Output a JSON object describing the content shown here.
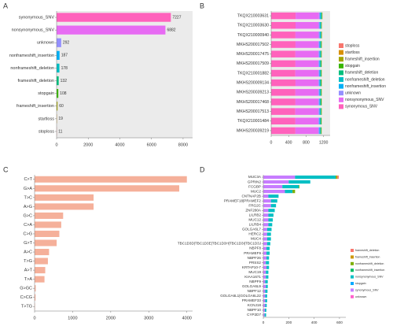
{
  "chart_data": [
    {
      "type": "bar",
      "orientation": "horizontal",
      "label": "A",
      "background": "#ebebeb",
      "categories": [
        "synonymous_SNV",
        "nonsynonymous_SNV",
        "unknown",
        "nonframeshift_insertion",
        "nonframeshift_deletion",
        "frameshift_deletion",
        "stopgain",
        "frameshift_insertion",
        "startloss",
        "stoploss"
      ],
      "values": [
        7227,
        6882,
        292,
        187,
        178,
        132,
        108,
        60,
        19,
        11
      ],
      "colors": [
        "#ff62bc",
        "#e76bf3",
        "#9590ff",
        "#00b0f6",
        "#00bfc4",
        "#00bf7d",
        "#39b600",
        "#a3a500",
        "#d89000",
        "#f8766d"
      ],
      "xlim": [
        0,
        8600
      ],
      "xticks": [
        0,
        2000,
        4000,
        6000,
        8000
      ]
    },
    {
      "type": "stacked_bar",
      "orientation": "horizontal",
      "label": "B",
      "background": "#ebebeb",
      "categories": [
        "TKQX210003631",
        "TKQX210003630",
        "TKQX210000940",
        "MKHS200017502",
        "MKHS200017475",
        "MKHS200017509",
        "TKQX210001882",
        "MKHS200009134",
        "MKHS200039213",
        "MKHS200017468",
        "MKHS200017513",
        "TKQX210001484",
        "MKHS200039219"
      ],
      "series": [
        {
          "name": "stoploss",
          "color": "#f8766d",
          "values": [
            1,
            1,
            1,
            1,
            1,
            1,
            1,
            1,
            1,
            1,
            0,
            1,
            0
          ]
        },
        {
          "name": "startloss",
          "color": "#d89000",
          "values": [
            2,
            1,
            2,
            1,
            2,
            1,
            1,
            2,
            1,
            2,
            2,
            1,
            1
          ]
        },
        {
          "name": "frameshift_insertion",
          "color": "#a3a500",
          "values": [
            5,
            4,
            5,
            5,
            4,
            5,
            4,
            5,
            5,
            4,
            5,
            4,
            5
          ]
        },
        {
          "name": "stopgain",
          "color": "#39b600",
          "values": [
            9,
            8,
            8,
            9,
            8,
            8,
            9,
            8,
            8,
            9,
            8,
            8,
            8
          ]
        },
        {
          "name": "frameshift_deletion",
          "color": "#00bf7d",
          "values": [
            11,
            10,
            10,
            11,
            10,
            10,
            10,
            10,
            10,
            10,
            10,
            10,
            10
          ]
        },
        {
          "name": "nonframeshift_deletion",
          "color": "#00bfc4",
          "values": [
            14,
            14,
            13,
            14,
            14,
            13,
            14,
            14,
            14,
            13,
            14,
            14,
            13
          ]
        },
        {
          "name": "nonframeshift_insertion",
          "color": "#00b0f6",
          "values": [
            15,
            14,
            15,
            14,
            14,
            15,
            14,
            14,
            15,
            14,
            14,
            15,
            14
          ]
        },
        {
          "name": "unknown",
          "color": "#9590ff",
          "values": [
            23,
            22,
            23,
            22,
            23,
            22,
            22,
            23,
            22,
            22,
            23,
            22,
            23
          ]
        },
        {
          "name": "nonsynonymous_SNV",
          "color": "#e76bf3",
          "values": [
            535,
            530,
            532,
            528,
            530,
            527,
            531,
            526,
            529,
            528,
            532,
            527,
            527
          ]
        },
        {
          "name": "synonymous_SNV",
          "color": "#ff62bc",
          "values": [
            560,
            558,
            556,
            557,
            555,
            556,
            554,
            557,
            555,
            556,
            553,
            555,
            555
          ]
        }
      ],
      "xlim": [
        0,
        1350
      ],
      "xticks": [
        0,
        400,
        800,
        1200
      ]
    },
    {
      "type": "bar",
      "orientation": "horizontal",
      "label": "C",
      "color": "#f5b09a",
      "categories": [
        "C>T",
        "G>A",
        "T>C",
        "A>G",
        "G>C",
        "C>A",
        "C>G",
        "G>T",
        "A>C",
        "T>G",
        "A>T",
        "T>A",
        "G>GC",
        "C>CG",
        "T>TG"
      ],
      "values": [
        4000,
        3800,
        1550,
        1550,
        750,
        700,
        650,
        580,
        380,
        350,
        280,
        260,
        30,
        25,
        10
      ],
      "xlim": [
        0,
        4150
      ],
      "xticks": [
        0,
        1000,
        2000,
        3000,
        4000
      ]
    },
    {
      "type": "stacked_bar",
      "orientation": "horizontal",
      "label": "D",
      "categories": [
        "MUC3A",
        "GPRIN2",
        "FCGBP",
        "MUC2",
        "CNTNAP2B",
        "PRAMEF18|PRAMEF2",
        "FRG2C",
        "ZNF280A",
        "LILRB2",
        "MUC12",
        "LILRB4",
        "GOLGA6L7",
        "HERC2",
        "MUC4",
        "TBC1D3D|TBC1D3E|TBC1D3H|TBC1D3I|TBC1D3J",
        "NBPF8",
        "PRAMEF9",
        "NBPF26",
        "PRSS2",
        "KRTAP10-7",
        "MUC19",
        "KIAA1671",
        "NBPF9",
        "GOLGA6L9",
        "NBPF12",
        "GOLGA6L1|GOLGA6L22",
        "PRAMEF33",
        "KCNJ18",
        "NBPF10",
        "CYP2D7"
      ],
      "series": [
        {
          "name": "frameshift_deletion",
          "color": "#f8766d",
          "values": [
            10,
            0,
            0,
            0,
            0,
            0,
            0,
            0,
            0,
            0,
            0,
            0,
            0,
            0,
            0,
            0,
            0,
            0,
            0,
            0,
            0,
            0,
            0,
            0,
            0,
            0,
            0,
            0,
            0,
            0
          ]
        },
        {
          "name": "frameshift_insertion",
          "color": "#cd9600",
          "values": [
            6,
            0,
            0,
            0,
            0,
            0,
            0,
            0,
            0,
            0,
            0,
            0,
            0,
            0,
            0,
            0,
            0,
            0,
            0,
            0,
            0,
            0,
            0,
            0,
            0,
            0,
            0,
            0,
            0,
            0
          ]
        },
        {
          "name": "nonframeshift_deletion",
          "color": "#7cae00",
          "values": [
            8,
            0,
            5,
            20,
            0,
            0,
            0,
            0,
            0,
            0,
            0,
            0,
            0,
            0,
            0,
            0,
            0,
            0,
            0,
            0,
            0,
            0,
            0,
            0,
            0,
            0,
            0,
            0,
            0,
            0
          ]
        },
        {
          "name": "nonframeshift_insertion",
          "color": "#00be67",
          "values": [
            0,
            0,
            0,
            0,
            0,
            0,
            0,
            0,
            0,
            0,
            0,
            0,
            0,
            0,
            0,
            0,
            0,
            0,
            0,
            0,
            0,
            0,
            0,
            0,
            0,
            0,
            0,
            0,
            0,
            0
          ]
        },
        {
          "name": "nonsynonymous_SNV",
          "color": "#00bfc4",
          "values": [
            320,
            170,
            130,
            60,
            80,
            50,
            40,
            50,
            40,
            35,
            30,
            35,
            30,
            30,
            25,
            25,
            25,
            20,
            25,
            20,
            20,
            20,
            20,
            15,
            18,
            15,
            15,
            12,
            12,
            12
          ]
        },
        {
          "name": "stopgain",
          "color": "#00a9ff",
          "values": [
            0,
            0,
            0,
            0,
            0,
            0,
            0,
            0,
            0,
            0,
            0,
            0,
            0,
            0,
            0,
            0,
            0,
            0,
            0,
            0,
            0,
            0,
            0,
            0,
            0,
            0,
            0,
            0,
            0,
            0
          ]
        },
        {
          "name": "synonymous_SNV",
          "color": "#c77cff",
          "values": [
            250,
            200,
            150,
            170,
            40,
            60,
            60,
            40,
            40,
            40,
            40,
            30,
            30,
            30,
            30,
            25,
            25,
            25,
            20,
            25,
            20,
            20,
            15,
            20,
            15,
            15,
            15,
            15,
            12,
            10
          ]
        },
        {
          "name": "unknown",
          "color": "#ff61cc",
          "values": [
            0,
            0,
            0,
            0,
            0,
            0,
            0,
            0,
            0,
            0,
            0,
            0,
            0,
            0,
            0,
            0,
            0,
            0,
            0,
            0,
            0,
            0,
            0,
            0,
            0,
            0,
            0,
            0,
            0,
            0
          ]
        }
      ],
      "xlim": [
        0,
        650
      ],
      "xticks": [
        0,
        200,
        400,
        600
      ]
    }
  ]
}
